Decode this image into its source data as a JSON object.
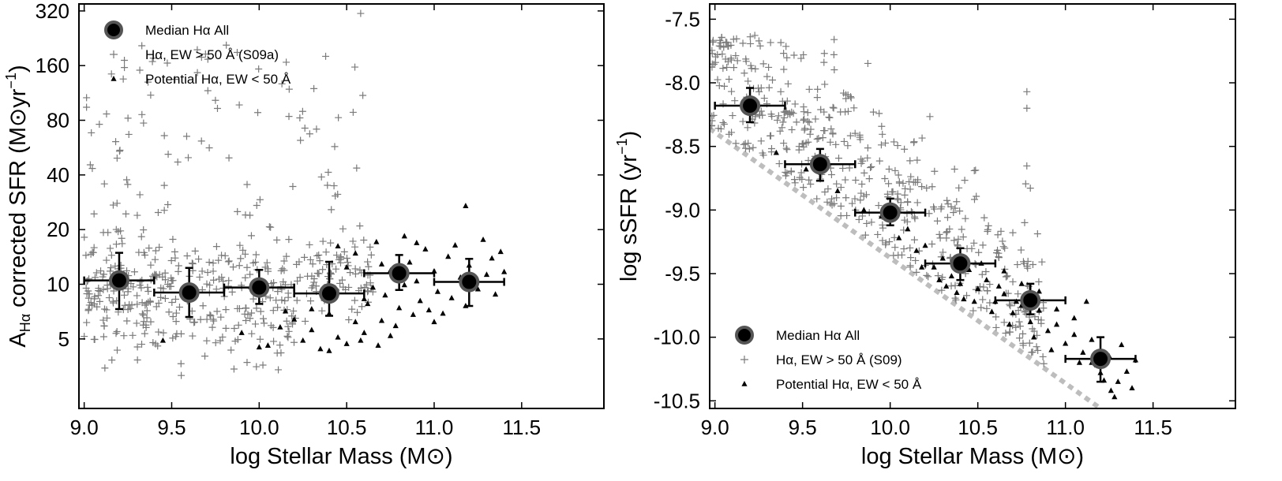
{
  "chart_data": [
    {
      "type": "scatter",
      "panel": "left",
      "xlabel": "log Stellar Mass (M⊙)",
      "ylabel": "Aₕα corrected SFR (M⊙yr⁻¹)",
      "ylabel_main": "A",
      "ylabel_sub": "Hα",
      "ylabel_rest": " corrected SFR (M⊙yr",
      "ylabel_sup": "−1",
      "ylabel_close": ")",
      "xlim": [
        8.97,
        11.97
      ],
      "ylim_log2": [
        1.05,
        8.45
      ],
      "yscale": "log",
      "xticks": [
        9.0,
        9.5,
        10.0,
        10.5,
        11.0,
        11.5
      ],
      "xtick_labels": [
        "9.0",
        "9.5",
        "10.0",
        "10.5",
        "11.0",
        "11.5"
      ],
      "yticks": [
        5,
        10,
        20,
        40,
        80,
        160,
        320
      ],
      "ytick_labels": [
        "5",
        "10",
        "20",
        "40",
        "80",
        "160",
        "320"
      ],
      "legend_position": "top-left",
      "legend": [
        {
          "key": "median",
          "label": "Median Hα All"
        },
        {
          "key": "plus",
          "label": "Hα, EW > 50 Å  (S09a)"
        },
        {
          "key": "tri",
          "label": "Potential Hα, EW < 50 Å"
        }
      ],
      "medians": [
        {
          "x": 9.2,
          "y": 10.5,
          "xerr": 0.2,
          "ylo": 7.3,
          "yhi": 14.9
        },
        {
          "x": 9.6,
          "y": 9.0,
          "xerr": 0.2,
          "ylo": 6.6,
          "yhi": 12.3
        },
        {
          "x": 10.0,
          "y": 9.6,
          "xerr": 0.2,
          "ylo": 7.8,
          "yhi": 12.0
        },
        {
          "x": 10.4,
          "y": 8.9,
          "xerr": 0.2,
          "ylo": 6.7,
          "yhi": 13.3
        },
        {
          "x": 10.8,
          "y": 11.5,
          "xerr": 0.2,
          "ylo": 9.3,
          "yhi": 14.5
        },
        {
          "x": 11.2,
          "y": 10.3,
          "xerr": 0.2,
          "ylo": 7.6,
          "yhi": 13.8
        }
      ],
      "plus_seed": 7,
      "plus_count": 520,
      "tri_points": [
        [
          10.12,
          5.8
        ],
        [
          10.05,
          4.6
        ],
        [
          10.2,
          6.4
        ],
        [
          10.25,
          4.9
        ],
        [
          10.3,
          5.6
        ],
        [
          10.35,
          4.4
        ],
        [
          10.4,
          6.9
        ],
        [
          10.45,
          5.1
        ],
        [
          10.5,
          4.7
        ],
        [
          10.55,
          6.2
        ],
        [
          10.6,
          5.4
        ],
        [
          10.62,
          7.8
        ],
        [
          10.65,
          9.6
        ],
        [
          10.7,
          6.3
        ],
        [
          10.72,
          8.7
        ],
        [
          10.75,
          11.9
        ],
        [
          10.78,
          5.9
        ],
        [
          10.8,
          7.4
        ],
        [
          10.83,
          9.9
        ],
        [
          10.86,
          13.2
        ],
        [
          10.88,
          6.8
        ],
        [
          10.9,
          10.4
        ],
        [
          10.92,
          8.1
        ],
        [
          10.95,
          15.6
        ],
        [
          10.97,
          7.2
        ],
        [
          11.0,
          11.8
        ],
        [
          11.02,
          9.1
        ],
        [
          11.05,
          6.9
        ],
        [
          11.08,
          14.2
        ],
        [
          11.1,
          8.4
        ],
        [
          11.12,
          16.4
        ],
        [
          11.15,
          10.9
        ],
        [
          11.18,
          7.6
        ],
        [
          11.2,
          12.7
        ],
        [
          11.25,
          9.4
        ],
        [
          11.28,
          17.6
        ],
        [
          11.3,
          11.3
        ],
        [
          11.33,
          13.9
        ],
        [
          11.35,
          8.8
        ],
        [
          11.38,
          15.1
        ],
        [
          11.18,
          27.0
        ],
        [
          11.4,
          11.7
        ],
        [
          10.45,
          16.2
        ],
        [
          10.5,
          12.4
        ],
        [
          10.55,
          14.8
        ],
        [
          10.6,
          8.3
        ],
        [
          10.67,
          17.1
        ],
        [
          10.7,
          12.9
        ],
        [
          10.83,
          18.4
        ],
        [
          10.9,
          16.9
        ],
        [
          9.45,
          4.9
        ],
        [
          9.9,
          5.4
        ],
        [
          10.0,
          4.5
        ],
        [
          10.15,
          7.1
        ],
        [
          10.3,
          7.3
        ],
        [
          10.4,
          4.3
        ],
        [
          10.58,
          4.9
        ],
        [
          10.68,
          4.6
        ],
        [
          10.75,
          5.2
        ],
        [
          11.0,
          6.2
        ]
      ]
    },
    {
      "type": "scatter",
      "panel": "right",
      "xlabel": "log Stellar Mass (M⊙)",
      "ylabel": "log sSFR (yr⁻¹)",
      "ylabel_main": "log sSFR (yr",
      "ylabel_sup": "−1",
      "ylabel_close": ")",
      "xlim": [
        8.97,
        11.97
      ],
      "ylim": [
        -10.56,
        -7.38
      ],
      "yscale": "linear",
      "xticks": [
        9.0,
        9.5,
        10.0,
        10.5,
        11.0,
        11.5
      ],
      "xtick_labels": [
        "9.0",
        "9.5",
        "10.0",
        "10.5",
        "11.0",
        "11.5"
      ],
      "yticks": [
        -10.5,
        -10.0,
        -9.5,
        -9.0,
        -8.5,
        -8.0,
        -7.5
      ],
      "ytick_labels": [
        "-10.5",
        "-10.0",
        "-9.5",
        "-9.0",
        "-8.5",
        "-8.0",
        "-7.5"
      ],
      "legend_position": "bottom-left",
      "legend": [
        {
          "key": "median",
          "label": "Median Hα All"
        },
        {
          "key": "plus",
          "label": "Hα, EW > 50 Å  (S09)"
        },
        {
          "key": "tri",
          "label": "Potential Hα, EW < 50 Å"
        }
      ],
      "threshold_line": {
        "x": [
          8.97,
          11.2
        ],
        "y": [
          -8.36,
          -10.56
        ]
      },
      "medians": [
        {
          "x": 9.2,
          "y": -8.18,
          "xerr": 0.2,
          "ylo": -8.31,
          "yhi": -8.04
        },
        {
          "x": 9.6,
          "y": -8.64,
          "xerr": 0.2,
          "ylo": -8.77,
          "yhi": -8.52
        },
        {
          "x": 10.0,
          "y": -9.02,
          "xerr": 0.2,
          "ylo": -9.12,
          "yhi": -8.91
        },
        {
          "x": 10.4,
          "y": -9.42,
          "xerr": 0.2,
          "ylo": -9.55,
          "yhi": -9.3
        },
        {
          "x": 10.8,
          "y": -9.71,
          "xerr": 0.2,
          "ylo": -9.82,
          "yhi": -9.58
        },
        {
          "x": 11.2,
          "y": -10.17,
          "xerr": 0.2,
          "ylo": -10.35,
          "yhi": -10.0
        }
      ],
      "plus_seed": 13,
      "plus_count": 520,
      "tri_points": [
        [
          9.35,
          -8.55
        ],
        [
          9.52,
          -8.68
        ],
        [
          9.7,
          -8.85
        ],
        [
          9.85,
          -9.0
        ],
        [
          9.95,
          -9.05
        ],
        [
          10.05,
          -9.22
        ],
        [
          10.1,
          -9.15
        ],
        [
          10.15,
          -9.32
        ],
        [
          10.2,
          -9.28
        ],
        [
          10.25,
          -9.45
        ],
        [
          10.3,
          -9.38
        ],
        [
          10.35,
          -9.52
        ],
        [
          10.4,
          -9.58
        ],
        [
          10.45,
          -9.47
        ],
        [
          10.5,
          -9.62
        ],
        [
          10.55,
          -9.55
        ],
        [
          10.6,
          -9.72
        ],
        [
          10.65,
          -9.66
        ],
        [
          10.7,
          -9.81
        ],
        [
          10.75,
          -9.75
        ],
        [
          10.8,
          -9.88
        ],
        [
          10.85,
          -9.79
        ],
        [
          10.9,
          -9.95
        ],
        [
          10.95,
          -9.9
        ],
        [
          11.0,
          -10.05
        ],
        [
          11.05,
          -9.98
        ],
        [
          11.1,
          -10.12
        ],
        [
          11.15,
          -10.2
        ],
        [
          11.2,
          -10.28
        ],
        [
          11.25,
          -10.15
        ],
        [
          11.3,
          -10.35
        ],
        [
          11.35,
          -10.27
        ],
        [
          11.38,
          -10.4
        ],
        [
          11.28,
          -10.47
        ],
        [
          11.18,
          -10.22
        ],
        [
          11.12,
          -9.72
        ],
        [
          11.32,
          -10.06
        ],
        [
          11.4,
          -10.18
        ],
        [
          10.62,
          -9.6
        ],
        [
          10.72,
          -9.72
        ],
        [
          10.68,
          -9.9
        ],
        [
          10.82,
          -10.0
        ],
        [
          10.92,
          -10.1
        ],
        [
          10.58,
          -9.8
        ],
        [
          10.48,
          -9.72
        ],
        [
          10.38,
          -9.65
        ],
        [
          10.28,
          -9.55
        ],
        [
          10.18,
          -9.45
        ],
        [
          10.75,
          -9.58
        ],
        [
          10.95,
          -9.78
        ],
        [
          11.05,
          -9.85
        ],
        [
          11.15,
          -10.02
        ],
        [
          10.85,
          -9.64
        ],
        [
          10.65,
          -9.48
        ],
        [
          10.52,
          -9.42
        ],
        [
          10.42,
          -9.7
        ],
        [
          10.32,
          -9.6
        ],
        [
          11.22,
          -10.34
        ],
        [
          11.26,
          -10.42
        ],
        [
          11.08,
          -10.2
        ]
      ]
    }
  ]
}
